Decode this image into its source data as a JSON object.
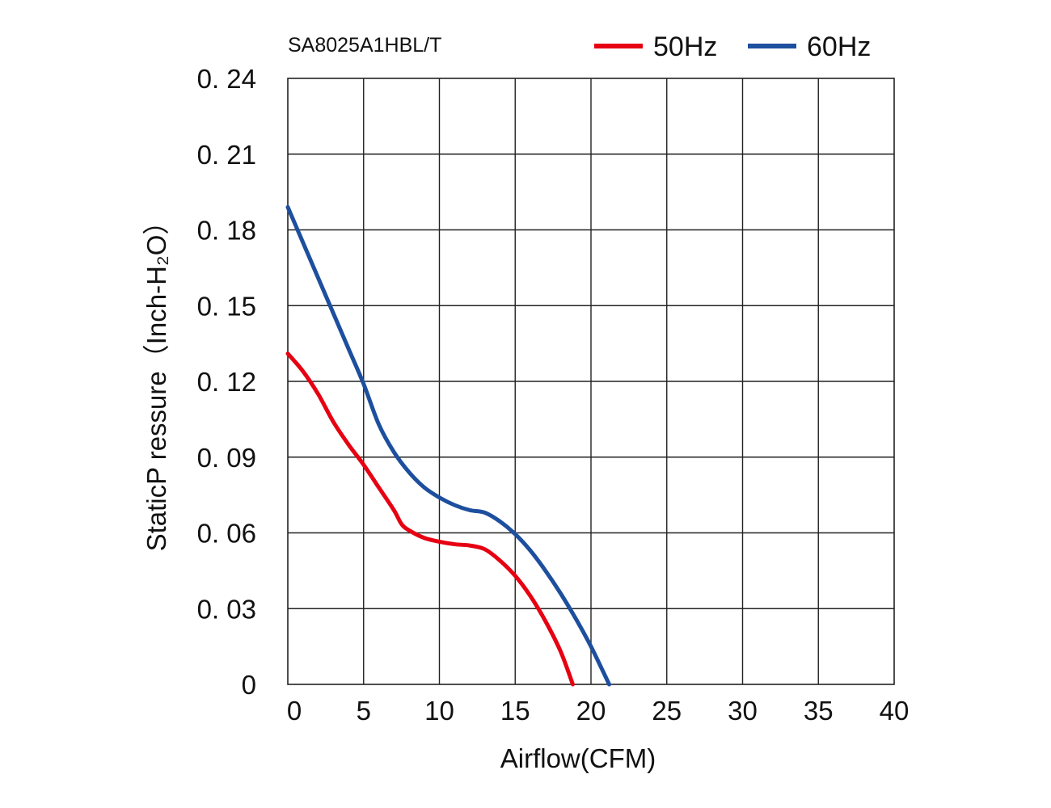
{
  "chart_data": {
    "type": "line",
    "title": "SA8025A1HBL/T",
    "xlabel": "Airflow(CFM)",
    "ylabel": "StaticP ressure（Inch-H₂O）",
    "xlim": [
      0,
      40
    ],
    "ylim": [
      0,
      0.24
    ],
    "x_ticks": [
      0,
      5,
      10,
      15,
      20,
      25,
      30,
      35,
      40
    ],
    "x_tick_labels": [
      "0",
      "5",
      "10",
      "15",
      "20",
      "25",
      "30",
      "35",
      "40"
    ],
    "y_ticks": [
      0,
      0.03,
      0.06,
      0.09,
      0.12,
      0.15,
      0.18,
      0.21,
      0.24
    ],
    "y_tick_labels": [
      "0",
      "0. 03",
      "0. 06",
      "0. 09",
      "0. 12",
      "0. 15",
      "0. 18",
      "0. 21",
      "0. 24"
    ],
    "grid": true,
    "legend_position": "top-right",
    "series": [
      {
        "name": "50Hz",
        "color": "#e60012",
        "points": [
          [
            0,
            0.131
          ],
          [
            1,
            0.124
          ],
          [
            2,
            0.115
          ],
          [
            3,
            0.104
          ],
          [
            4,
            0.095
          ],
          [
            5,
            0.087
          ],
          [
            6,
            0.078
          ],
          [
            7,
            0.069
          ],
          [
            7.5,
            0.0635
          ],
          [
            8,
            0.061
          ],
          [
            9,
            0.058
          ],
          [
            10,
            0.0565
          ],
          [
            11,
            0.0555
          ],
          [
            12,
            0.055
          ],
          [
            13,
            0.0535
          ],
          [
            14,
            0.049
          ],
          [
            15,
            0.043
          ],
          [
            16,
            0.035
          ],
          [
            17,
            0.025
          ],
          [
            18,
            0.013
          ],
          [
            18.8,
            0.0
          ]
        ]
      },
      {
        "name": "60Hz",
        "color": "#1d4f9e",
        "points": [
          [
            0,
            0.189
          ],
          [
            1,
            0.175
          ],
          [
            2,
            0.161
          ],
          [
            3,
            0.147
          ],
          [
            4,
            0.133
          ],
          [
            5,
            0.119
          ],
          [
            6,
            0.103
          ],
          [
            7,
            0.092
          ],
          [
            8,
            0.084
          ],
          [
            9,
            0.078
          ],
          [
            10,
            0.074
          ],
          [
            11,
            0.071
          ],
          [
            12,
            0.069
          ],
          [
            13,
            0.068
          ],
          [
            14,
            0.0645
          ],
          [
            15,
            0.0595
          ],
          [
            16,
            0.053
          ],
          [
            17,
            0.045
          ],
          [
            18,
            0.036
          ],
          [
            19,
            0.026
          ],
          [
            20,
            0.015
          ],
          [
            21.2,
            0.0
          ]
        ]
      }
    ]
  }
}
